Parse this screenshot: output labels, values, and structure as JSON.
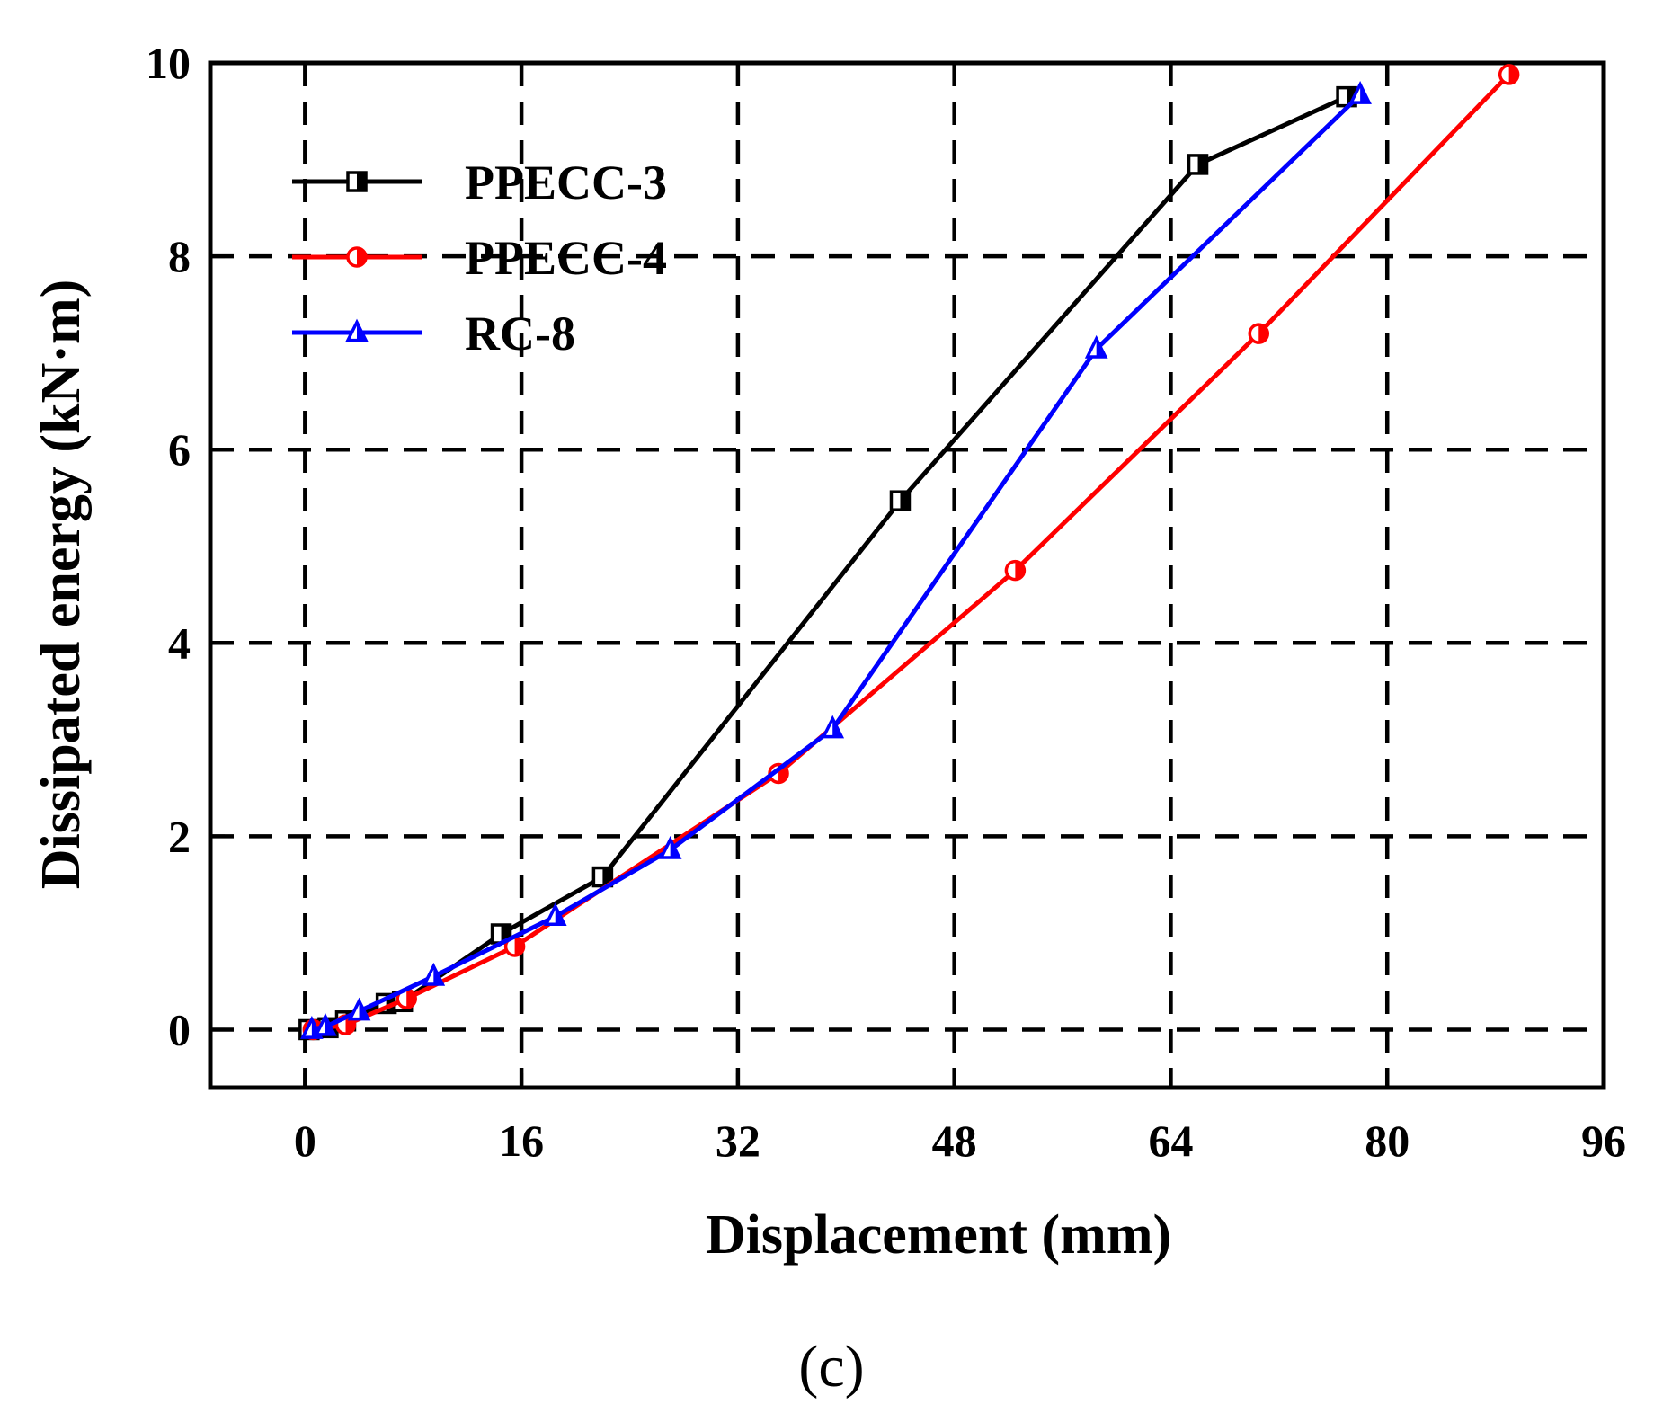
{
  "chart_data": {
    "type": "line",
    "title": "",
    "xlabel": "Displacement (mm)",
    "ylabel": "Dissipated energy (kN·m)",
    "xlim": [
      -7,
      96
    ],
    "ylim": [
      -0.6,
      10
    ],
    "xticks": [
      0,
      16,
      32,
      48,
      64,
      80,
      96
    ],
    "yticks": [
      0,
      2,
      4,
      6,
      8,
      10
    ],
    "x_tick_labels": [
      "0",
      "16",
      "32",
      "48",
      "64",
      "80",
      "96"
    ],
    "y_tick_labels": [
      "0",
      "2",
      "4",
      "6",
      "8",
      "10"
    ],
    "grid": true,
    "grid_style": "dashed",
    "legend_position": "top-left",
    "caption": "(c)",
    "series": [
      {
        "name": "PPECC-3",
        "color": "#000000",
        "marker": "half-square",
        "x": [
          0.3,
          1.7,
          3.0,
          6.0,
          7.2,
          14.5,
          22.0,
          44.0,
          66.0,
          77.0
        ],
        "y": [
          0.0,
          0.02,
          0.09,
          0.27,
          0.29,
          0.99,
          1.58,
          5.47,
          8.95,
          9.65
        ]
      },
      {
        "name": "PPECC-4",
        "color": "#ff0000",
        "marker": "half-circle",
        "x": [
          0.6,
          3.0,
          7.5,
          15.5,
          35.0,
          52.5,
          70.5,
          89.0
        ],
        "y": [
          0.0,
          0.05,
          0.32,
          0.86,
          2.65,
          4.75,
          7.2,
          9.88
        ]
      },
      {
        "name": "RC-8",
        "color": "#0000ff",
        "marker": "half-triangle",
        "x": [
          0.5,
          1.5,
          4.0,
          9.5,
          18.5,
          27.0,
          39.0,
          58.5,
          78.0
        ],
        "y": [
          0.0,
          0.03,
          0.19,
          0.55,
          1.17,
          1.86,
          3.11,
          7.04,
          9.67
        ]
      }
    ]
  }
}
